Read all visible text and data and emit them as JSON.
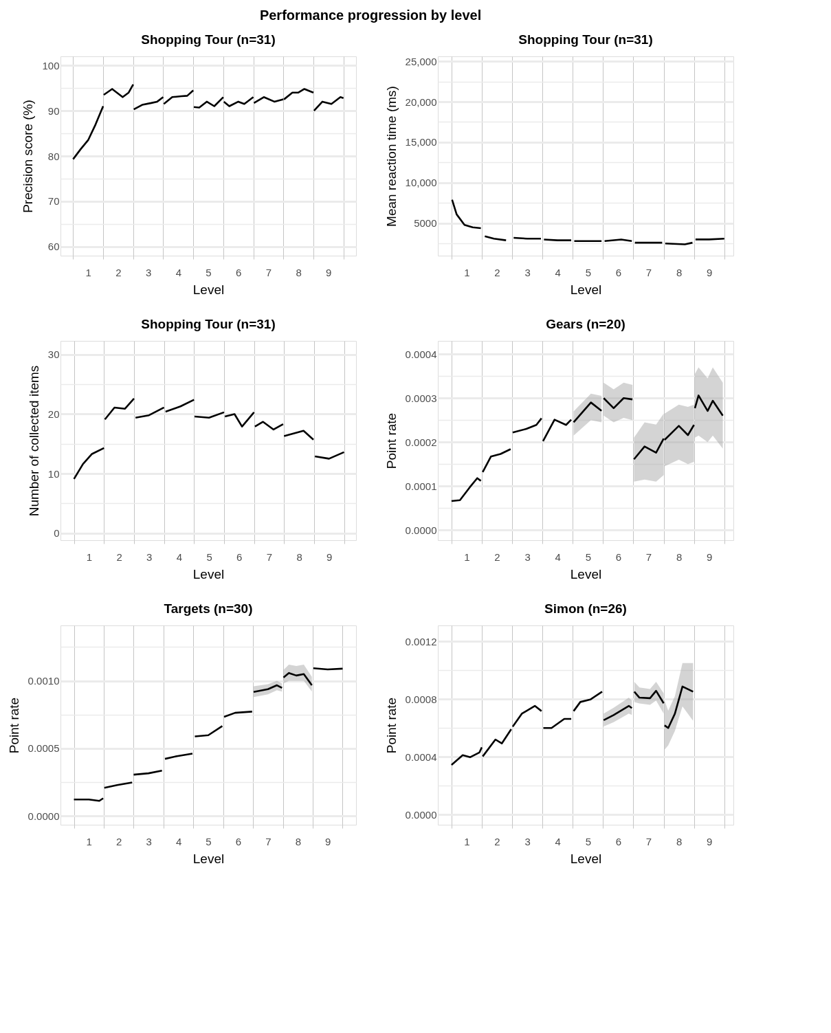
{
  "chart_data": [
    {
      "type": "line",
      "title": "Shopping Tour (n=31)",
      "annotations": [
        "Performance progression by level"
      ],
      "xlabel": "Level",
      "ylabel": "Precision score (%)",
      "xlim": [
        0.08,
        9.92
      ],
      "ylim": [
        58,
        102
      ],
      "grid": true,
      "xticks": [
        {
          "value": 0.5,
          "label": null
        },
        1,
        {
          "value": 1.5,
          "label": null
        },
        2,
        {
          "value": 2.5,
          "label": null
        },
        3,
        {
          "value": 3.5,
          "label": null
        },
        4,
        {
          "value": 4.5,
          "label": null
        },
        5,
        {
          "value": 5.5,
          "label": null
        },
        6,
        {
          "value": 6.5,
          "label": null
        },
        7,
        {
          "value": 7.5,
          "label": null
        },
        8,
        {
          "value": 8.5,
          "label": null
        },
        9,
        {
          "value": 9.5,
          "label": null
        }
      ],
      "yticks": [
        60,
        {
          "value": 65,
          "label": null
        },
        70,
        {
          "value": 75,
          "label": null
        },
        80,
        {
          "value": 85,
          "label": null
        },
        90,
        {
          "value": 95,
          "label": null
        },
        100
      ],
      "series": [
        {
          "color": "#000000",
          "x": [
            0.5,
            0.75,
            1.0,
            1.25,
            1.5,
            null,
            1.52,
            1.8,
            2.15,
            2.35,
            2.5,
            null,
            2.52,
            2.8,
            3.1,
            3.3,
            3.5,
            null,
            3.52,
            3.8,
            4.1,
            4.3,
            4.5,
            null,
            4.52,
            4.7,
            4.95,
            5.2,
            5.5,
            null,
            5.52,
            5.7,
            6.0,
            6.2,
            6.5,
            null,
            6.52,
            6.85,
            7.2,
            7.5,
            null,
            7.52,
            7.8,
            8.0,
            8.2,
            8.5,
            null,
            8.52,
            8.8,
            9.1,
            9.4,
            9.5
          ],
          "values": [
            79.3,
            81.5,
            83.5,
            87,
            91,
            null,
            93.5,
            94.8,
            93,
            94,
            95.8,
            null,
            90.3,
            91.3,
            91.7,
            92,
            93,
            null,
            91.5,
            93,
            93.2,
            93.3,
            94.5,
            null,
            90.8,
            90.7,
            92,
            91,
            93,
            null,
            92,
            91,
            92,
            91.5,
            93,
            null,
            91.7,
            93,
            92,
            92.5,
            null,
            92.5,
            94,
            94,
            94.8,
            94,
            null,
            90,
            92,
            91.5,
            93,
            92.8
          ]
        }
      ]
    },
    {
      "type": "line",
      "title": "Shopping Tour (n=31)",
      "xlabel": "Level",
      "ylabel": "Mean reaction time (ms)",
      "xlim": [
        0.05,
        9.8
      ],
      "ylim": [
        1000,
        25600
      ],
      "grid": true,
      "xticks": [
        {
          "value": 0.5,
          "label": null
        },
        1,
        {
          "value": 1.5,
          "label": null
        },
        2,
        {
          "value": 2.5,
          "label": null
        },
        3,
        {
          "value": 3.5,
          "label": null
        },
        4,
        {
          "value": 4.5,
          "label": null
        },
        5,
        {
          "value": 5.5,
          "label": null
        },
        6,
        {
          "value": 6.5,
          "label": null
        },
        7,
        {
          "value": 7.5,
          "label": null
        },
        8,
        {
          "value": 8.5,
          "label": null
        },
        9,
        {
          "value": 9.5,
          "label": null
        }
      ],
      "yticks": [
        {
          "value": 2500,
          "label": null
        },
        5000,
        {
          "value": 7500,
          "label": null
        },
        {
          "value": 10000,
          "label": "10,000"
        },
        {
          "value": 12500,
          "label": null
        },
        {
          "value": 15000,
          "label": "15,000"
        },
        {
          "value": 17500,
          "label": null
        },
        {
          "value": 20000,
          "label": "20,000"
        },
        {
          "value": 22500,
          "label": null
        },
        {
          "value": 25000,
          "label": "25,000"
        }
      ],
      "series": [
        {
          "color": "#000000",
          "x": [
            0.52,
            0.67,
            0.93,
            1.2,
            1.47,
            null,
            1.6,
            1.9,
            2.3,
            null,
            2.55,
            3.0,
            3.45,
            null,
            3.55,
            4.0,
            4.45,
            null,
            4.55,
            5.0,
            5.45,
            null,
            5.55,
            6.1,
            6.45,
            null,
            6.55,
            7.0,
            7.45,
            null,
            7.55,
            8.2,
            8.45,
            null,
            8.55,
            9.0,
            9.5
          ],
          "values": [
            7900,
            6100,
            4800,
            4500,
            4400,
            null,
            3400,
            3100,
            2900,
            null,
            3200,
            3100,
            3100,
            null,
            3000,
            2900,
            2900,
            null,
            2800,
            2800,
            2800,
            null,
            2800,
            3000,
            2800,
            null,
            2600,
            2600,
            2600,
            null,
            2500,
            2400,
            2600,
            null,
            3000,
            3000,
            3100
          ]
        }
      ]
    },
    {
      "type": "line",
      "title": "Shopping Tour (n=31)",
      "xlabel": "Level",
      "ylabel": "Number of collected items",
      "xlim": [
        0.05,
        9.9
      ],
      "ylim": [
        -1.2,
        32.3
      ],
      "grid": true,
      "xticks": [
        {
          "value": 0.5,
          "label": null
        },
        1,
        {
          "value": 1.5,
          "label": null
        },
        2,
        {
          "value": 2.5,
          "label": null
        },
        3,
        {
          "value": 3.5,
          "label": null
        },
        4,
        {
          "value": 4.5,
          "label": null
        },
        5,
        {
          "value": 5.5,
          "label": null
        },
        6,
        {
          "value": 6.5,
          "label": null
        },
        7,
        {
          "value": 7.5,
          "label": null
        },
        8,
        {
          "value": 8.5,
          "label": null
        },
        9,
        {
          "value": 9.5,
          "label": null
        }
      ],
      "yticks": [
        0,
        {
          "value": 5,
          "label": null
        },
        10,
        {
          "value": 15,
          "label": null
        },
        20,
        {
          "value": 25,
          "label": null
        },
        30
      ],
      "series": [
        {
          "color": "#000000",
          "x": [
            0.5,
            0.8,
            1.1,
            1.5,
            null,
            1.53,
            1.85,
            2.2,
            2.5,
            null,
            2.55,
            3.0,
            3.5,
            null,
            3.55,
            4.05,
            4.5,
            null,
            4.52,
            5.0,
            5.5,
            null,
            5.53,
            5.85,
            6.1,
            6.5,
            null,
            6.53,
            6.8,
            7.15,
            7.47,
            null,
            7.5,
            8.15,
            8.48,
            null,
            8.53,
            9.0,
            9.5
          ],
          "values": [
            9.1,
            11.6,
            13.3,
            14.3,
            null,
            19.1,
            21.1,
            20.9,
            22.6,
            null,
            19.4,
            19.8,
            21.1,
            null,
            20.4,
            21.3,
            22.4,
            null,
            19.6,
            19.4,
            20.3,
            null,
            19.6,
            20,
            17.9,
            20.3,
            null,
            17.9,
            18.7,
            17.4,
            18.3,
            null,
            16.3,
            17.2,
            15.7,
            null,
            12.9,
            12.5,
            13.6
          ]
        }
      ]
    },
    {
      "type": "line",
      "title": "Gears (n=20)",
      "xlabel": "Level",
      "ylabel": "Point rate",
      "xlim": [
        0.05,
        9.8
      ],
      "ylim": [
        -2.3e-05,
        0.00043
      ],
      "grid": true,
      "xticks": [
        {
          "value": 0.5,
          "label": null
        },
        1,
        {
          "value": 1.5,
          "label": null
        },
        2,
        {
          "value": 2.5,
          "label": null
        },
        3,
        {
          "value": 3.5,
          "label": null
        },
        4,
        {
          "value": 4.5,
          "label": null
        },
        5,
        {
          "value": 5.5,
          "label": null
        },
        6,
        {
          "value": 6.5,
          "label": null
        },
        7,
        {
          "value": 7.5,
          "label": null
        },
        8,
        {
          "value": 8.5,
          "label": null
        },
        9,
        {
          "value": 9.5,
          "label": null
        }
      ],
      "yticks": [
        {
          "value": 0,
          "label": "0.0000"
        },
        {
          "value": 5e-05,
          "label": null
        },
        {
          "value": 0.0001,
          "label": "0.0001"
        },
        {
          "value": 0.00015,
          "label": null
        },
        {
          "value": 0.0002,
          "label": "0.0002"
        },
        {
          "value": 0.00025,
          "label": null
        },
        {
          "value": 0.0003,
          "label": "0.0003"
        },
        {
          "value": 0.00035,
          "label": null
        },
        {
          "value": 0.0004,
          "label": "0.0004"
        }
      ],
      "series": [
        {
          "color": "#000000",
          "x": [
            0.5,
            0.78,
            1.1,
            1.35,
            1.47,
            null,
            1.53,
            1.8,
            2.12,
            2.45,
            null,
            2.52,
            2.97,
            3.3,
            3.47,
            null,
            3.52,
            3.9,
            4.28,
            4.45,
            null,
            4.53,
            5.1,
            5.45,
            null,
            5.52,
            5.85,
            6.18,
            6.47,
            null,
            6.52,
            6.87,
            7.25,
            7.5,
            null,
            7.53,
            8.0,
            8.3,
            8.5,
            null,
            8.53,
            8.65,
            8.95,
            9.12,
            9.45
          ],
          "values": [
            6.6e-05,
            6.8e-05,
            9.7e-05,
            0.000118,
            0.000112,
            null,
            0.000132,
            0.000167,
            0.000173,
            0.000184,
            null,
            0.000222,
            0.00023,
            0.000239,
            0.000254,
            null,
            0.000202,
            0.000251,
            0.000239,
            0.000251,
            null,
            0.000245,
            0.00029,
            0.000271,
            null,
            0.0003,
            0.000277,
            0.0003,
            0.000297,
            null,
            0.000161,
            0.00019,
            0.000176,
            0.000208,
            null,
            0.000205,
            0.000237,
            0.000216,
            0.000239,
            null,
            0.000277,
            0.000306,
            0.000271,
            0.000294,
            0.00026
          ],
          "lower": [
            null,
            null,
            null,
            null,
            null,
            null,
            null,
            null,
            null,
            null,
            null,
            null,
            null,
            null,
            null,
            null,
            null,
            null,
            null,
            null,
            null,
            0.000215,
            0.00025,
            0.000245,
            null,
            0.00026,
            0.000245,
            0.000255,
            0.00025,
            null,
            0.00011,
            0.000115,
            0.00011,
            0.000125,
            null,
            0.000145,
            0.00016,
            0.00015,
            0.000155,
            null,
            0.00021,
            0.000215,
            0.0002,
            0.000215,
            0.000185
          ],
          "upper": [
            null,
            null,
            null,
            null,
            null,
            null,
            null,
            null,
            null,
            null,
            null,
            null,
            null,
            null,
            null,
            null,
            null,
            null,
            null,
            null,
            null,
            0.00027,
            0.00031,
            0.000305,
            null,
            0.000335,
            0.00032,
            0.000335,
            0.00033,
            null,
            0.00021,
            0.000245,
            0.00024,
            0.000265,
            null,
            0.000265,
            0.000285,
            0.00028,
            0.000285,
            null,
            0.000355,
            0.00037,
            0.000345,
            0.00037,
            0.000335
          ]
        }
      ]
    },
    {
      "type": "line",
      "title": "Targets (n=30)",
      "xlabel": "Level",
      "ylabel": "Point rate",
      "xlim": [
        0.05,
        9.95
      ],
      "ylim": [
        -6.6e-05,
        0.00141
      ],
      "grid": true,
      "xticks": [
        {
          "value": 0.5,
          "label": null
        },
        1,
        {
          "value": 1.5,
          "label": null
        },
        2,
        {
          "value": 2.5,
          "label": null
        },
        3,
        {
          "value": 3.5,
          "label": null
        },
        4,
        {
          "value": 4.5,
          "label": null
        },
        5,
        {
          "value": 5.5,
          "label": null
        },
        6,
        {
          "value": 6.5,
          "label": null
        },
        7,
        {
          "value": 7.5,
          "label": null
        },
        8,
        {
          "value": 8.5,
          "label": null
        },
        9,
        {
          "value": 9.5,
          "label": null
        }
      ],
      "yticks": [
        {
          "value": 0,
          "label": "0.0000"
        },
        {
          "value": 0.00025,
          "label": null
        },
        {
          "value": 0.0005,
          "label": "0.0005"
        },
        {
          "value": 0.00075,
          "label": null
        },
        {
          "value": 0.001,
          "label": "0.0010"
        },
        {
          "value": 0.00125,
          "label": null
        }
      ],
      "series": [
        {
          "color": "#000000",
          "x": [
            0.5,
            1.0,
            1.35,
            1.48,
            null,
            1.52,
            1.95,
            2.45,
            null,
            2.5,
            3.0,
            3.45,
            null,
            3.55,
            3.95,
            4.47,
            null,
            4.55,
            5.0,
            5.47,
            null,
            5.53,
            5.9,
            6.47,
            null,
            6.52,
            7.0,
            7.3,
            7.47,
            null,
            7.52,
            7.7,
            7.95,
            8.2,
            8.47,
            null,
            8.52,
            9.0,
            9.5
          ],
          "values": [
            0.000121,
            0.000121,
            0.000111,
            0.00013,
            null,
            0.000208,
            0.000228,
            0.000247,
            null,
            0.000305,
            0.000315,
            0.000335,
            null,
            0.000422,
            0.000442,
            0.000461,
            null,
            0.000588,
            0.000597,
            0.000665,
            null,
            0.000733,
            0.000763,
            0.000772,
            null,
            0.000918,
            0.000938,
            0.000967,
            0.000947,
            null,
            0.001025,
            0.001058,
            0.001039,
            0.00105,
            0.000967,
            null,
            0.001093,
            0.001084,
            0.00109
          ],
          "lower": [
            null,
            null,
            null,
            null,
            null,
            null,
            null,
            null,
            null,
            null,
            null,
            null,
            null,
            null,
            null,
            null,
            null,
            null,
            null,
            null,
            null,
            null,
            null,
            null,
            null,
            0.00088,
            0.0009,
            0.00093,
            0.00092,
            null,
            0.00098,
            0.001,
            0.001,
            0.001,
            0.00092,
            null,
            null,
            null,
            null
          ],
          "upper": [
            null,
            null,
            null,
            null,
            null,
            null,
            null,
            null,
            null,
            null,
            null,
            null,
            null,
            null,
            null,
            null,
            null,
            null,
            null,
            null,
            null,
            null,
            null,
            null,
            null,
            0.00096,
            0.000975,
            0.001,
            0.00098,
            null,
            0.00108,
            0.00112,
            0.00111,
            0.00112,
            0.00103,
            null,
            null,
            null,
            null
          ]
        }
      ]
    },
    {
      "type": "line",
      "title": "Simon (n=26)",
      "xlabel": "Level",
      "ylabel": "Point rate",
      "xlim": [
        0.05,
        9.8
      ],
      "ylim": [
        -7e-05,
        0.00131
      ],
      "grid": true,
      "xticks": [
        {
          "value": 0.5,
          "label": null
        },
        1,
        {
          "value": 1.5,
          "label": null
        },
        2,
        {
          "value": 2.5,
          "label": null
        },
        3,
        {
          "value": 3.5,
          "label": null
        },
        4,
        {
          "value": 4.5,
          "label": null
        },
        5,
        {
          "value": 5.5,
          "label": null
        },
        6,
        {
          "value": 6.5,
          "label": null
        },
        7,
        {
          "value": 7.5,
          "label": null
        },
        8,
        {
          "value": 8.5,
          "label": null
        },
        9,
        {
          "value": 9.5,
          "label": null
        }
      ],
      "yticks": [
        {
          "value": 0,
          "label": "0.0000"
        },
        {
          "value": 0.0002,
          "label": null
        },
        {
          "value": 0.0004,
          "label": "0.0004"
        },
        {
          "value": 0.0006,
          "label": null
        },
        {
          "value": 0.0008,
          "label": "0.0008"
        },
        {
          "value": 0.001,
          "label": null
        },
        {
          "value": 0.0012,
          "label": "0.0012"
        }
      ],
      "series": [
        {
          "color": "#000000",
          "x": [
            0.5,
            0.87,
            1.12,
            1.42,
            1.5,
            null,
            1.53,
            1.95,
            2.16,
            2.47,
            null,
            2.52,
            2.82,
            3.25,
            3.47,
            null,
            3.53,
            3.8,
            4.22,
            4.45,
            null,
            4.53,
            4.75,
            5.08,
            5.47,
            null,
            5.52,
            5.85,
            6.35,
            6.45,
            null,
            6.53,
            6.7,
            7.05,
            7.25,
            7.5,
            null,
            7.53,
            7.65,
            7.87,
            8.12,
            8.47
          ],
          "values": [
            0.000344,
            0.000412,
            0.000398,
            0.00043,
            0.000466,
            null,
            0.000403,
            0.00052,
            0.000493,
            0.000591,
            null,
            0.000609,
            0.000699,
            0.000753,
            0.000717,
            null,
            0.0006,
            0.0006,
            0.000663,
            0.000663,
            null,
            0.000717,
            0.00078,
            0.000797,
            0.000851,
            null,
            0.000654,
            0.00069,
            0.000753,
            0.000738,
            null,
            0.000851,
            0.00081,
            0.000806,
            0.000857,
            0.000771,
            null,
            0.000618,
            0.0006,
            0.000699,
            0.000887,
            0.000851
          ],
          "lower": [
            null,
            null,
            null,
            null,
            null,
            null,
            null,
            null,
            null,
            null,
            null,
            null,
            null,
            null,
            null,
            null,
            null,
            null,
            null,
            null,
            null,
            null,
            null,
            null,
            null,
            null,
            0.00061,
            0.00064,
            0.0007,
            0.00069,
            null,
            0.00078,
            0.00077,
            0.00076,
            0.00079,
            0.0007,
            null,
            0.00045,
            0.00048,
            0.00058,
            0.00075,
            0.00065
          ],
          "upper": [
            null,
            null,
            null,
            null,
            null,
            null,
            null,
            null,
            null,
            null,
            null,
            null,
            null,
            null,
            null,
            null,
            null,
            null,
            null,
            null,
            null,
            null,
            null,
            null,
            null,
            null,
            0.0007,
            0.00074,
            0.00081,
            0.00079,
            null,
            0.00092,
            0.00088,
            0.00087,
            0.00092,
            0.00084,
            null,
            0.00079,
            0.00072,
            0.00082,
            0.00105,
            0.00105
          ]
        }
      ]
    }
  ]
}
